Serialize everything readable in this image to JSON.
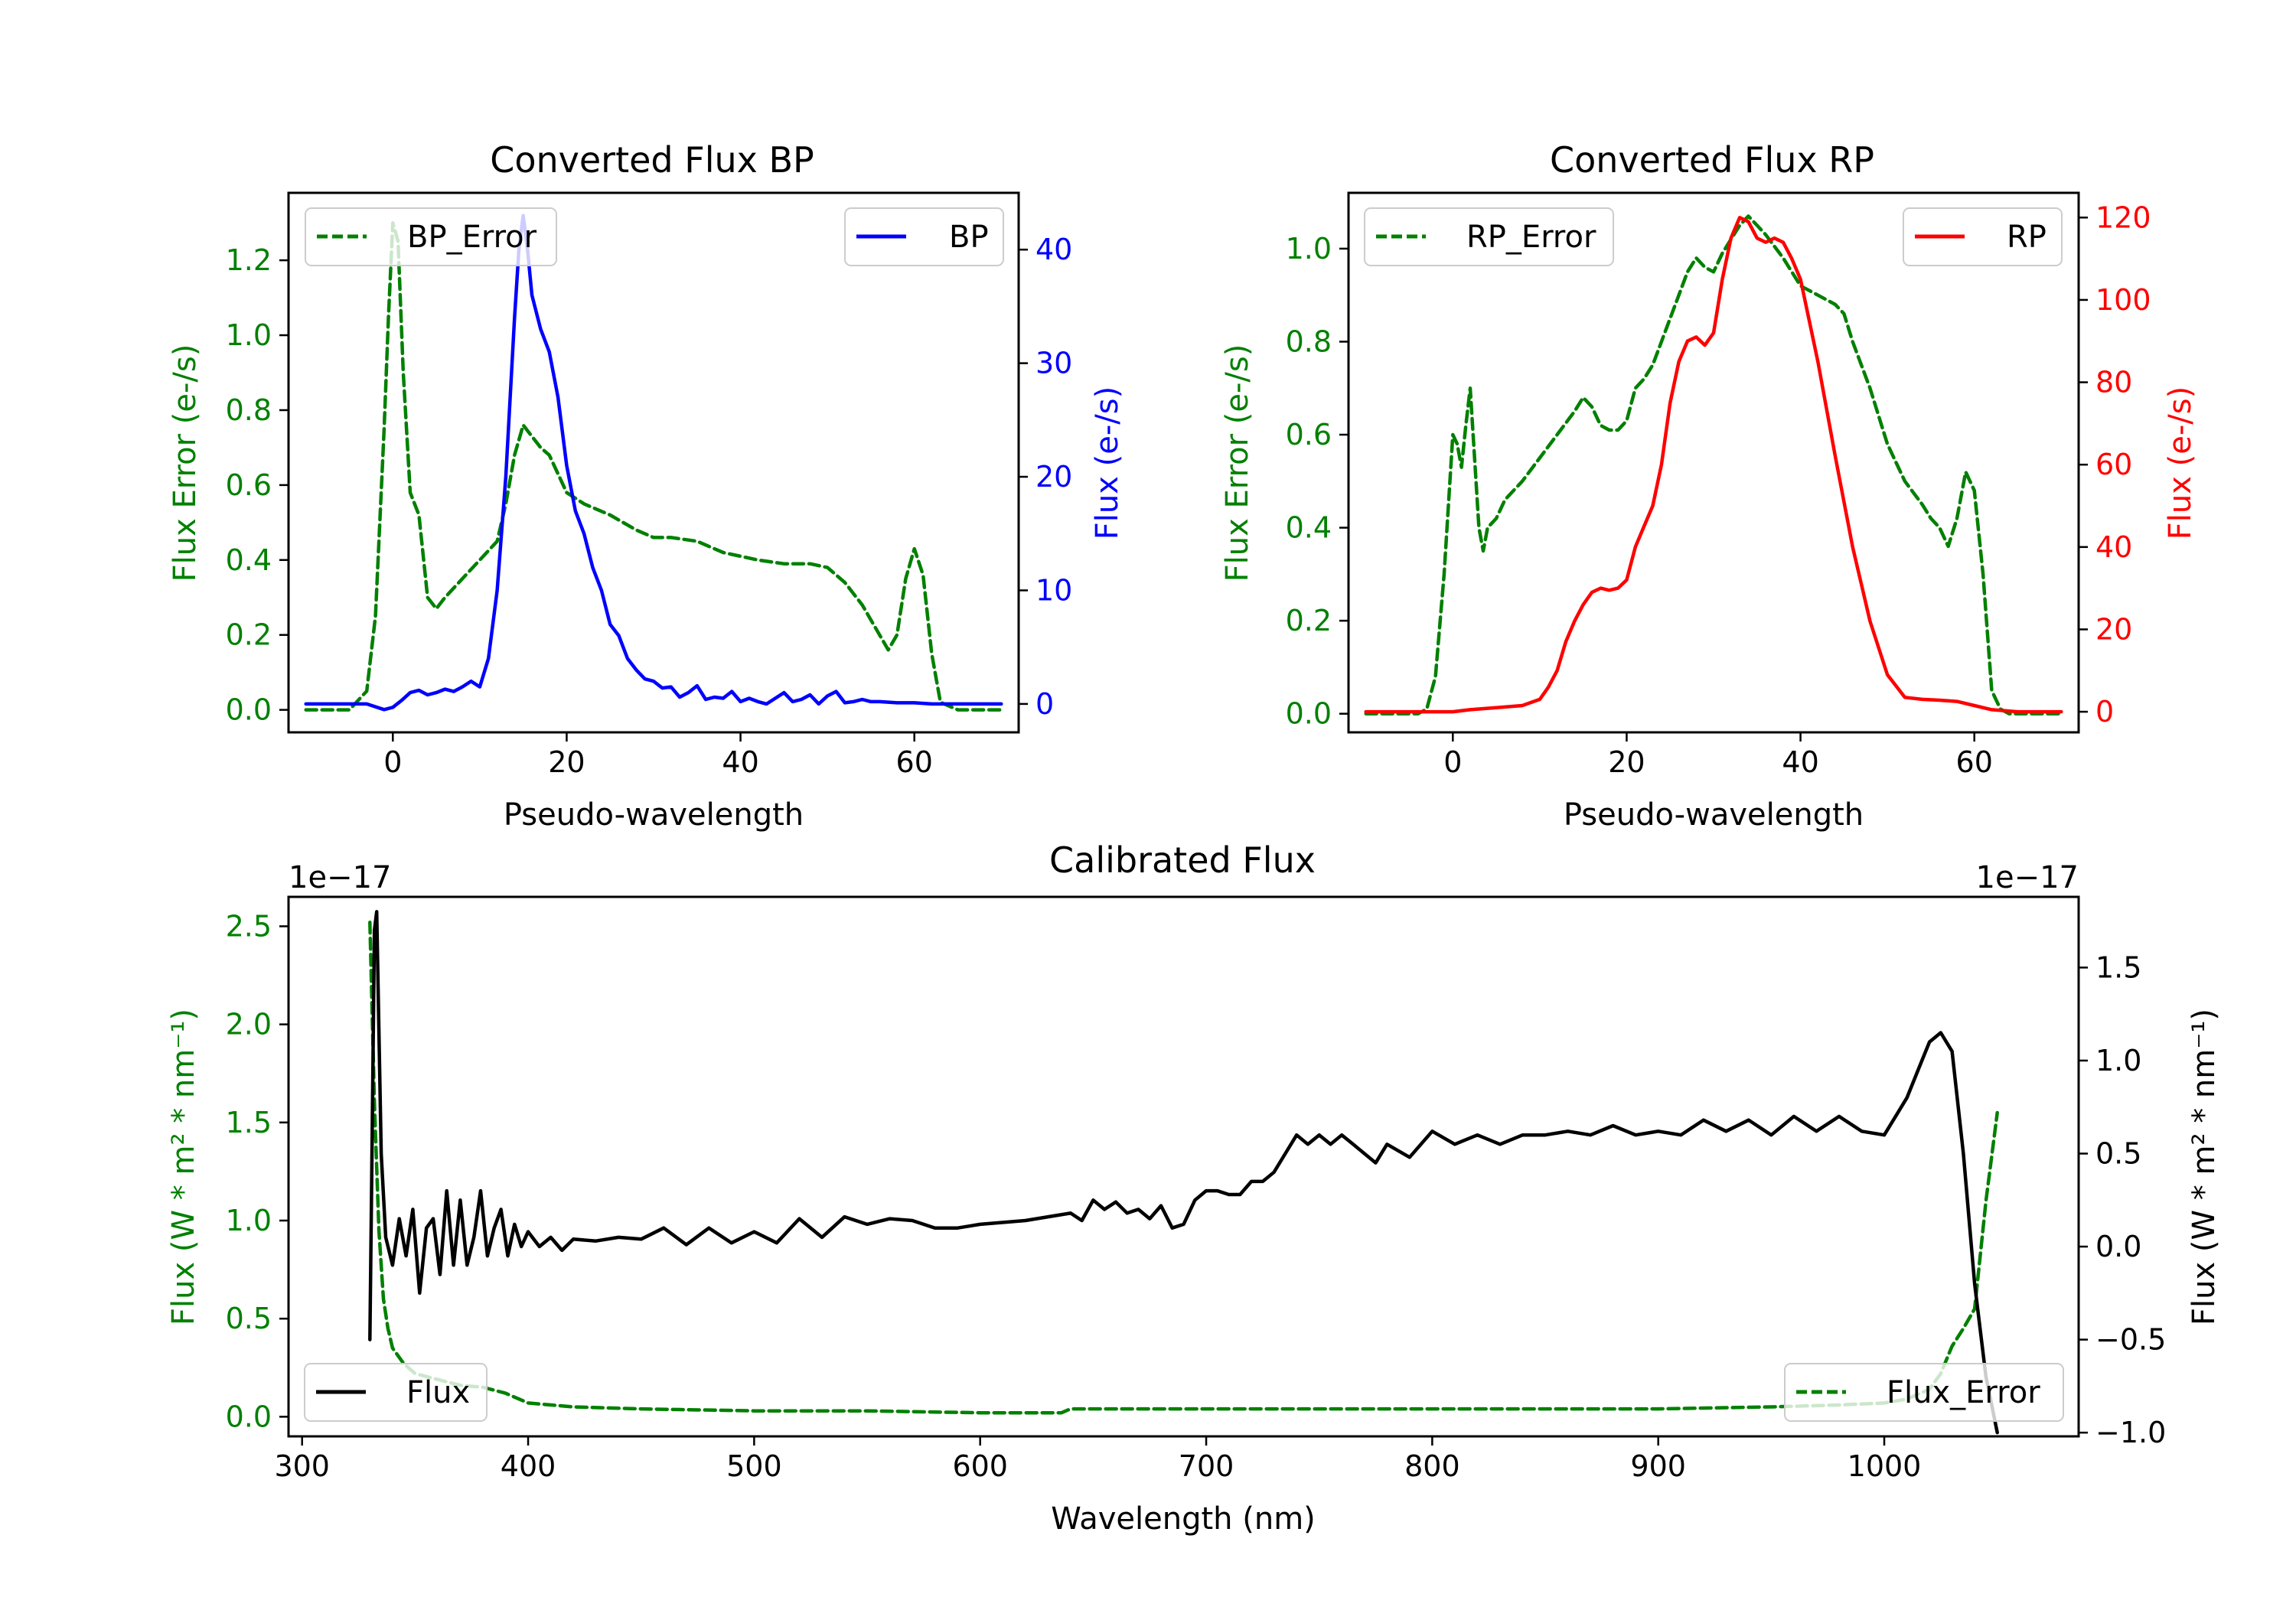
{
  "colors": {
    "bp": "#0000ff",
    "rp": "#ff0000",
    "error": "#008000",
    "flux": "#000000",
    "axis": "#000000"
  },
  "chart_data": [
    {
      "id": "bp",
      "type": "line",
      "title": "Converted Flux BP",
      "xlabel": "Pseudo-wavelength",
      "ylabel_left": "Flux Error (e-/s)",
      "ylabel_right": "Flux (e-/s)",
      "xlim": [
        -12,
        72
      ],
      "ylim_left": [
        -0.06,
        1.38
      ],
      "ylim_right": [
        -2.5,
        45
      ],
      "xticks": [
        "0",
        "20",
        "40",
        "60"
      ],
      "yticks_left": [
        "0.0",
        "0.2",
        "0.4",
        "0.6",
        "0.8",
        "1.0",
        "1.2"
      ],
      "yticks_right": [
        "0",
        "10",
        "20",
        "30",
        "40"
      ],
      "legend_left_label": "BP_Error",
      "legend_right_label": "BP",
      "series": [
        {
          "name": "BP_Error",
          "axis": "left",
          "style": "dashed",
          "x": [
            -10,
            -5,
            -3,
            -2,
            -1,
            -0.5,
            0,
            0.6,
            1.2,
            2,
            3,
            4,
            5,
            6,
            8,
            10,
            12,
            13,
            14,
            15,
            16,
            17,
            18,
            19,
            20,
            22,
            25,
            28,
            30,
            32,
            35,
            38,
            40,
            42,
            45,
            48,
            50,
            52,
            54,
            56,
            57,
            58,
            59,
            60,
            61,
            62,
            63,
            65,
            70
          ],
          "y": [
            0.0,
            0.0,
            0.05,
            0.25,
            0.75,
            1.05,
            1.3,
            1.25,
            0.9,
            0.58,
            0.52,
            0.3,
            0.27,
            0.3,
            0.35,
            0.4,
            0.45,
            0.55,
            0.68,
            0.76,
            0.73,
            0.7,
            0.68,
            0.63,
            0.58,
            0.55,
            0.52,
            0.48,
            0.46,
            0.46,
            0.45,
            0.42,
            0.41,
            0.4,
            0.39,
            0.39,
            0.38,
            0.34,
            0.28,
            0.2,
            0.16,
            0.2,
            0.35,
            0.43,
            0.36,
            0.15,
            0.02,
            0.0,
            0.0
          ]
        },
        {
          "name": "BP",
          "axis": "right",
          "style": "solid",
          "x": [
            -10,
            -6,
            -3,
            -1,
            0,
            1,
            2,
            3,
            4,
            5,
            6,
            7,
            8,
            9,
            10,
            11,
            12,
            13,
            14,
            14.5,
            15,
            15.5,
            16,
            17,
            18,
            19,
            20,
            21,
            22,
            23,
            24,
            25,
            26,
            27,
            28,
            29,
            30,
            31,
            32,
            33,
            34,
            35,
            36,
            37,
            38,
            39,
            40,
            41,
            42,
            43,
            44,
            45,
            46,
            47,
            48,
            49,
            50,
            51,
            52,
            53,
            54,
            55,
            56,
            58,
            60,
            62,
            65,
            70
          ],
          "y": [
            0,
            0,
            0,
            -0.5,
            -0.3,
            0.3,
            1,
            1.2,
            0.8,
            1,
            1.3,
            1.1,
            1.5,
            2,
            1.5,
            4,
            10,
            20,
            34,
            40,
            43,
            40,
            36,
            33,
            31,
            27,
            21,
            17,
            15,
            12,
            10,
            7,
            6,
            4,
            3,
            2.2,
            2,
            1.4,
            1.5,
            0.6,
            1,
            1.6,
            0.4,
            0.6,
            0.5,
            1.1,
            0.2,
            0.5,
            0.2,
            0,
            0.5,
            1.0,
            0.2,
            0.4,
            0.8,
            0,
            0.7,
            1.1,
            0.1,
            0.2,
            0.4,
            0.2,
            0.2,
            0.1,
            0.1,
            0,
            0,
            0
          ]
        }
      ]
    },
    {
      "id": "rp",
      "type": "line",
      "title": "Converted Flux RP",
      "xlabel": "Pseudo-wavelength",
      "ylabel_left": "Flux Error (e-/s)",
      "ylabel_right": "Flux (e-/s)",
      "xlim": [
        -12,
        72
      ],
      "ylim_left": [
        -0.04,
        1.12
      ],
      "ylim_right": [
        -5,
        126
      ],
      "xticks": [
        "0",
        "20",
        "40",
        "60"
      ],
      "yticks_left": [
        "0.0",
        "0.2",
        "0.4",
        "0.6",
        "0.8",
        "1.0"
      ],
      "yticks_right": [
        "0",
        "20",
        "40",
        "60",
        "80",
        "100",
        "120"
      ],
      "legend_left_label": "RP_Error",
      "legend_right_label": "RP",
      "series": [
        {
          "name": "RP_Error",
          "axis": "left",
          "style": "dashed",
          "x": [
            -10,
            -4,
            -3,
            -2,
            -1,
            0,
            0.5,
            1,
            1.5,
            2,
            2.5,
            3,
            3.5,
            4,
            5,
            6,
            8,
            10,
            12,
            14,
            15,
            16,
            17,
            18,
            19,
            20,
            21,
            22,
            23,
            24,
            25,
            26,
            27,
            28,
            29,
            30,
            31,
            32,
            33,
            34,
            35,
            36,
            38,
            40,
            42,
            44,
            45,
            46,
            48,
            50,
            52,
            54,
            55,
            56,
            57,
            58,
            59,
            60,
            61,
            62,
            63,
            64,
            70
          ],
          "y": [
            0,
            0,
            0.01,
            0.08,
            0.3,
            0.6,
            0.58,
            0.53,
            0.62,
            0.7,
            0.55,
            0.4,
            0.35,
            0.4,
            0.42,
            0.46,
            0.5,
            0.55,
            0.6,
            0.65,
            0.68,
            0.66,
            0.62,
            0.61,
            0.61,
            0.63,
            0.7,
            0.72,
            0.75,
            0.8,
            0.85,
            0.9,
            0.95,
            0.98,
            0.96,
            0.95,
            0.99,
            1.02,
            1.05,
            1.07,
            1.05,
            1.03,
            0.98,
            0.92,
            0.9,
            0.88,
            0.86,
            0.8,
            0.7,
            0.58,
            0.5,
            0.45,
            0.42,
            0.4,
            0.36,
            0.42,
            0.52,
            0.48,
            0.3,
            0.05,
            0.01,
            0,
            0
          ]
        },
        {
          "name": "RP",
          "axis": "right",
          "style": "solid",
          "x": [
            -10,
            0,
            2,
            5,
            8,
            10,
            11,
            12,
            13,
            14,
            15,
            16,
            17,
            18,
            19,
            20,
            21,
            22,
            23,
            24,
            25,
            26,
            27,
            28,
            29,
            30,
            31,
            32,
            33,
            34,
            35,
            36,
            37,
            38,
            39,
            40,
            42,
            44,
            46,
            48,
            50,
            52,
            54,
            56,
            58,
            60,
            62,
            65,
            70
          ],
          "y": [
            0,
            0,
            0.5,
            1,
            1.5,
            3,
            6,
            10,
            17,
            22,
            26,
            29,
            30,
            29.5,
            30,
            32,
            40,
            45,
            50,
            60,
            75,
            85,
            90,
            91,
            89,
            92,
            105,
            115,
            120,
            119,
            115,
            114,
            115,
            114,
            110,
            105,
            85,
            62,
            40,
            22,
            9,
            3.5,
            3,
            2.8,
            2.5,
            1.5,
            0.5,
            0,
            0
          ]
        }
      ]
    },
    {
      "id": "calibrated",
      "type": "line",
      "title": "Calibrated Flux",
      "xlabel": "Wavelength (nm)",
      "ylabel_left": "Flux (W * m² * nm⁻¹)",
      "ylabel_right": "Flux (W * m² * nm⁻¹)",
      "offset_left": "1e−17",
      "offset_right": "1e−17",
      "xlim": [
        294,
        1086
      ],
      "ylim_left": [
        -0.1,
        2.65
      ],
      "ylim_right": [
        -1.02,
        1.88
      ],
      "xticks": [
        "300",
        "400",
        "500",
        "600",
        "700",
        "800",
        "900",
        "1000"
      ],
      "yticks_left": [
        "0.0",
        "0.5",
        "1.0",
        "1.5",
        "2.0",
        "2.5"
      ],
      "yticks_right": [
        "−1.0",
        "−0.5",
        "0.0",
        "0.5",
        "1.0",
        "1.5"
      ],
      "legend_left_label": "Flux",
      "legend_right_label": "Flux_Error",
      "series": [
        {
          "name": "Flux_Error",
          "axis": "left",
          "style": "dashed",
          "x": [
            330,
            332,
            334,
            336,
            338,
            340,
            345,
            350,
            360,
            370,
            380,
            390,
            400,
            420,
            450,
            500,
            550,
            600,
            636,
            640,
            700,
            800,
            900,
            950,
            980,
            1000,
            1010,
            1020,
            1025,
            1030,
            1035,
            1040,
            1045,
            1050
          ],
          "y": [
            2.52,
            1.6,
            0.95,
            0.6,
            0.45,
            0.35,
            0.27,
            0.22,
            0.19,
            0.16,
            0.15,
            0.12,
            0.07,
            0.05,
            0.04,
            0.03,
            0.03,
            0.02,
            0.02,
            0.04,
            0.04,
            0.04,
            0.04,
            0.05,
            0.06,
            0.07,
            0.09,
            0.14,
            0.22,
            0.36,
            0.45,
            0.55,
            1.1,
            1.55
          ]
        },
        {
          "name": "Flux",
          "axis": "right",
          "style": "solid",
          "x": [
            330,
            331,
            332,
            333,
            335,
            337,
            340,
            343,
            346,
            349,
            352,
            355,
            358,
            361,
            364,
            367,
            370,
            373,
            376,
            379,
            382,
            385,
            388,
            391,
            394,
            397,
            400,
            405,
            410,
            415,
            420,
            430,
            440,
            450,
            460,
            470,
            480,
            490,
            500,
            510,
            520,
            530,
            540,
            550,
            560,
            570,
            580,
            590,
            600,
            620,
            640,
            645,
            650,
            655,
            660,
            665,
            670,
            675,
            680,
            685,
            690,
            695,
            700,
            705,
            710,
            715,
            720,
            725,
            730,
            735,
            740,
            745,
            750,
            755,
            760,
            765,
            770,
            775,
            780,
            790,
            800,
            810,
            820,
            830,
            840,
            850,
            860,
            870,
            880,
            890,
            900,
            910,
            920,
            930,
            940,
            950,
            960,
            970,
            980,
            990,
            1000,
            1005,
            1010,
            1015,
            1020,
            1025,
            1030,
            1035,
            1040,
            1045,
            1050
          ],
          "y": [
            -0.5,
            0.6,
            1.7,
            1.8,
            0.5,
            0.05,
            -0.1,
            0.15,
            -0.05,
            0.2,
            -0.25,
            0.1,
            0.15,
            -0.15,
            0.3,
            -0.1,
            0.25,
            -0.1,
            0.05,
            0.3,
            -0.05,
            0.1,
            0.2,
            -0.05,
            0.12,
            0.0,
            0.08,
            0.0,
            0.05,
            -0.02,
            0.04,
            0.03,
            0.05,
            0.04,
            0.1,
            0.01,
            0.1,
            0.02,
            0.08,
            0.02,
            0.15,
            0.05,
            0.16,
            0.12,
            0.15,
            0.14,
            0.1,
            0.1,
            0.12,
            0.14,
            0.18,
            0.14,
            0.25,
            0.2,
            0.24,
            0.18,
            0.2,
            0.15,
            0.22,
            0.1,
            0.12,
            0.25,
            0.3,
            0.3,
            0.28,
            0.28,
            0.35,
            0.35,
            0.4,
            0.5,
            0.6,
            0.55,
            0.6,
            0.55,
            0.6,
            0.55,
            0.5,
            0.45,
            0.55,
            0.48,
            0.62,
            0.55,
            0.6,
            0.55,
            0.6,
            0.6,
            0.62,
            0.6,
            0.65,
            0.6,
            0.62,
            0.6,
            0.68,
            0.62,
            0.68,
            0.6,
            0.7,
            0.62,
            0.7,
            0.62,
            0.6,
            0.7,
            0.8,
            0.95,
            1.1,
            1.15,
            1.05,
            0.5,
            -0.2,
            -0.7,
            -1.0
          ]
        }
      ]
    }
  ]
}
